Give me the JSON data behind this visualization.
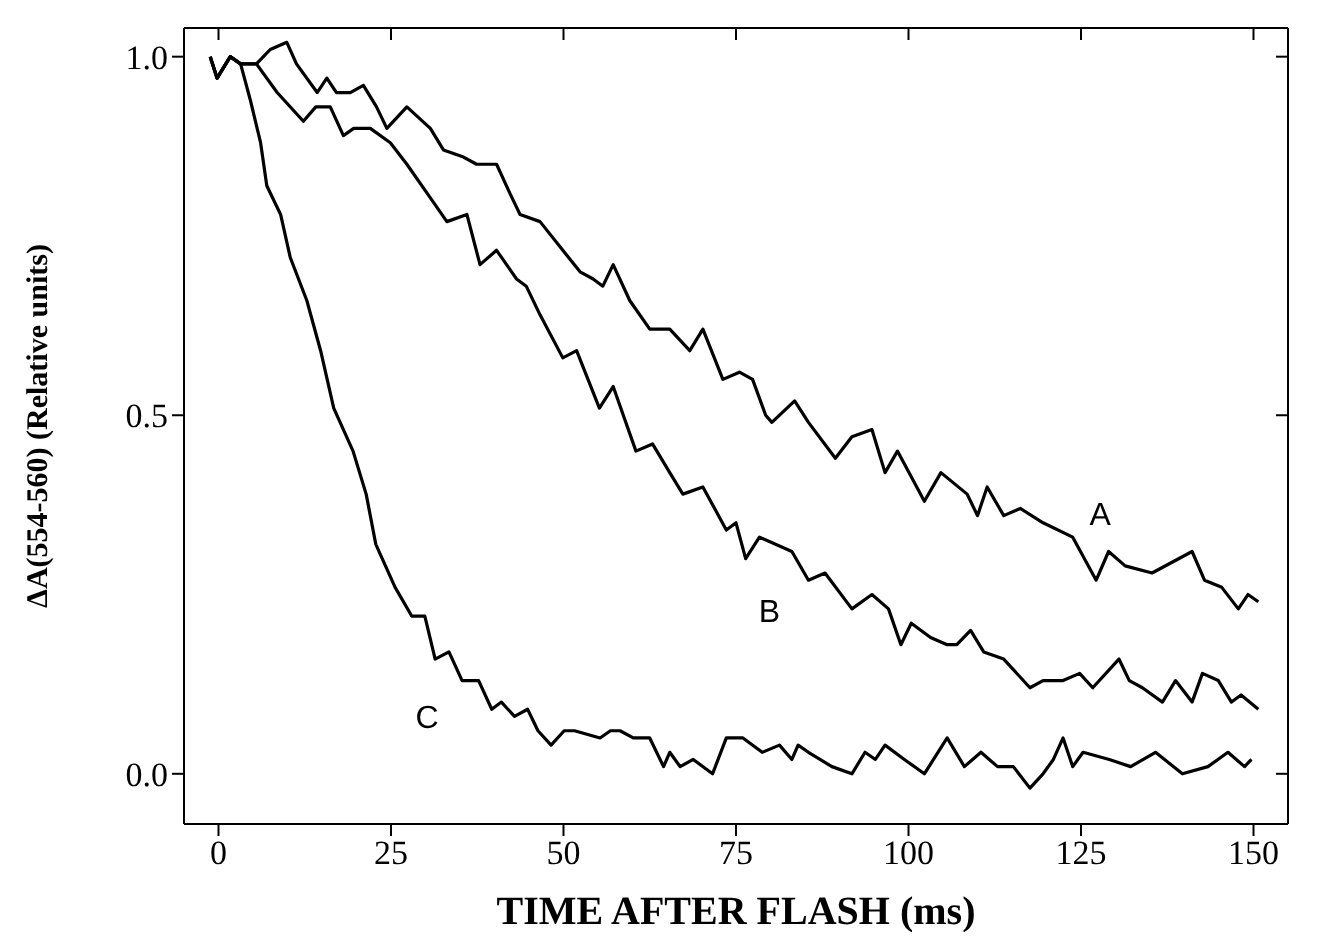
{
  "chart_data": {
    "type": "line",
    "xlabel": "TIME AFTER FLASH (ms)",
    "ylabel": "ΔA(554-560) (Relative units)",
    "xlim": [
      -5,
      155
    ],
    "ylim": [
      -0.07,
      1.04
    ],
    "xticks": [
      0,
      25,
      50,
      75,
      100,
      125,
      150
    ],
    "yticks": [
      {
        "value": 0,
        "label": "0.0"
      },
      {
        "value": 0.5,
        "label": "0.5"
      },
      {
        "value": 1,
        "label": "1.0"
      }
    ],
    "series": [
      {
        "name": "A",
        "color": "#000000",
        "x": [
          -1.2,
          -0.2,
          1.7,
          3.2,
          5.5,
          7.5,
          9.9,
          11.3,
          14.3,
          15.7,
          17.1,
          19.1,
          21.0,
          22.9,
          24.4,
          27.3,
          30.7,
          32.6,
          35.5,
          37.4,
          40.3,
          42.2,
          43.7,
          46.6,
          49.9,
          52.4,
          54.3,
          55.7,
          57.2,
          59.6,
          62.5,
          65.4,
          68.3,
          70.2,
          73.1,
          75.5,
          77.4,
          79.3,
          80.2,
          83.5,
          85.5,
          89.4,
          91.8,
          94.7,
          96.6,
          98.4,
          102.3,
          104.7,
          108.5,
          110.0,
          111.4,
          113.8,
          116.2,
          119.5,
          123.8,
          127.2,
          129.0,
          131.4,
          135.3,
          141.1,
          142.9,
          145.4,
          147.8,
          149.2,
          150.7
        ],
        "values": [
          1.0,
          0.97,
          1.0,
          0.99,
          0.99,
          1.01,
          1.02,
          0.99,
          0.95,
          0.97,
          0.95,
          0.95,
          0.96,
          0.93,
          0.9,
          0.93,
          0.9,
          0.87,
          0.86,
          0.85,
          0.85,
          0.81,
          0.78,
          0.77,
          0.73,
          0.7,
          0.69,
          0.68,
          0.71,
          0.66,
          0.62,
          0.62,
          0.59,
          0.62,
          0.55,
          0.56,
          0.55,
          0.5,
          0.49,
          0.52,
          0.49,
          0.44,
          0.47,
          0.48,
          0.42,
          0.45,
          0.38,
          0.42,
          0.39,
          0.36,
          0.4,
          0.36,
          0.37,
          0.35,
          0.33,
          0.27,
          0.31,
          0.29,
          0.28,
          0.31,
          0.27,
          0.26,
          0.23,
          0.25,
          0.24
        ]
      },
      {
        "name": "B",
        "color": "#000000",
        "x": [
          -1.2,
          -0.2,
          1.7,
          3.2,
          5.5,
          8.5,
          12.3,
          14.1,
          16.2,
          18.1,
          19.6,
          22.0,
          24.9,
          27.3,
          30.2,
          33.1,
          36.0,
          37.9,
          40.3,
          43.2,
          44.6,
          46.6,
          49.9,
          51.9,
          55.2,
          57.2,
          60.5,
          62.9,
          65.4,
          67.3,
          70.2,
          73.6,
          75.0,
          76.4,
          78.4,
          83.1,
          85.5,
          87.9,
          91.8,
          94.7,
          97.1,
          98.9,
          100.4,
          103.2,
          105.6,
          107.0,
          109.0,
          110.9,
          113.8,
          117.6,
          119.5,
          122.4,
          124.8,
          126.7,
          130.5,
          132.0,
          133.9,
          136.8,
          138.7,
          141.1,
          142.6,
          144.9,
          146.8,
          148.2,
          150.7
        ],
        "values": [
          1.0,
          0.97,
          1.0,
          0.99,
          0.99,
          0.95,
          0.91,
          0.93,
          0.93,
          0.89,
          0.9,
          0.9,
          0.88,
          0.85,
          0.81,
          0.77,
          0.78,
          0.71,
          0.73,
          0.69,
          0.68,
          0.64,
          0.58,
          0.59,
          0.51,
          0.54,
          0.45,
          0.46,
          0.42,
          0.39,
          0.4,
          0.34,
          0.35,
          0.3,
          0.33,
          0.31,
          0.27,
          0.28,
          0.23,
          0.25,
          0.23,
          0.18,
          0.21,
          0.19,
          0.18,
          0.18,
          0.2,
          0.17,
          0.16,
          0.12,
          0.13,
          0.13,
          0.14,
          0.12,
          0.16,
          0.13,
          0.12,
          0.1,
          0.13,
          0.1,
          0.14,
          0.13,
          0.1,
          0.11,
          0.09
        ]
      },
      {
        "name": "C",
        "color": "#000000",
        "x": [
          -1.2,
          -0.2,
          1.7,
          3.2,
          4.6,
          6.1,
          7.0,
          9.0,
          10.4,
          12.8,
          14.8,
          16.7,
          19.5,
          21.4,
          22.8,
          25.6,
          28.0,
          29.9,
          31.4,
          33.4,
          35.3,
          37.7,
          39.6,
          41.0,
          42.9,
          44.8,
          46.3,
          48.2,
          50.1,
          51.6,
          55.3,
          56.8,
          58.2,
          60.1,
          62.5,
          64.5,
          65.4,
          66.9,
          68.8,
          71.6,
          73.6,
          76.0,
          78.8,
          81.3,
          83.1,
          84.0,
          85.5,
          88.9,
          91.8,
          93.7,
          95.2,
          96.6,
          99.4,
          102.3,
          105.6,
          108.1,
          110.5,
          112.9,
          115.2,
          117.6,
          119.5,
          121.0,
          122.4,
          123.8,
          125.3,
          129.1,
          132.2,
          135.8,
          139.7,
          143.4,
          146.3,
          148.7,
          149.7
        ],
        "values": [
          1.0,
          0.97,
          1.0,
          0.99,
          0.94,
          0.88,
          0.82,
          0.78,
          0.72,
          0.66,
          0.59,
          0.51,
          0.45,
          0.39,
          0.32,
          0.26,
          0.22,
          0.22,
          0.16,
          0.17,
          0.13,
          0.13,
          0.09,
          0.1,
          0.08,
          0.09,
          0.06,
          0.04,
          0.06,
          0.06,
          0.05,
          0.06,
          0.06,
          0.05,
          0.05,
          0.01,
          0.03,
          0.01,
          0.02,
          0.0,
          0.05,
          0.05,
          0.03,
          0.04,
          0.02,
          0.04,
          0.03,
          0.01,
          0.0,
          0.03,
          0.02,
          0.04,
          0.02,
          0.0,
          0.05,
          0.01,
          0.03,
          0.01,
          0.01,
          -0.02,
          0.0,
          0.02,
          0.05,
          0.01,
          0.03,
          0.02,
          0.01,
          0.03,
          0.0,
          0.01,
          0.03,
          0.01,
          0.02
        ]
      }
    ]
  }
}
